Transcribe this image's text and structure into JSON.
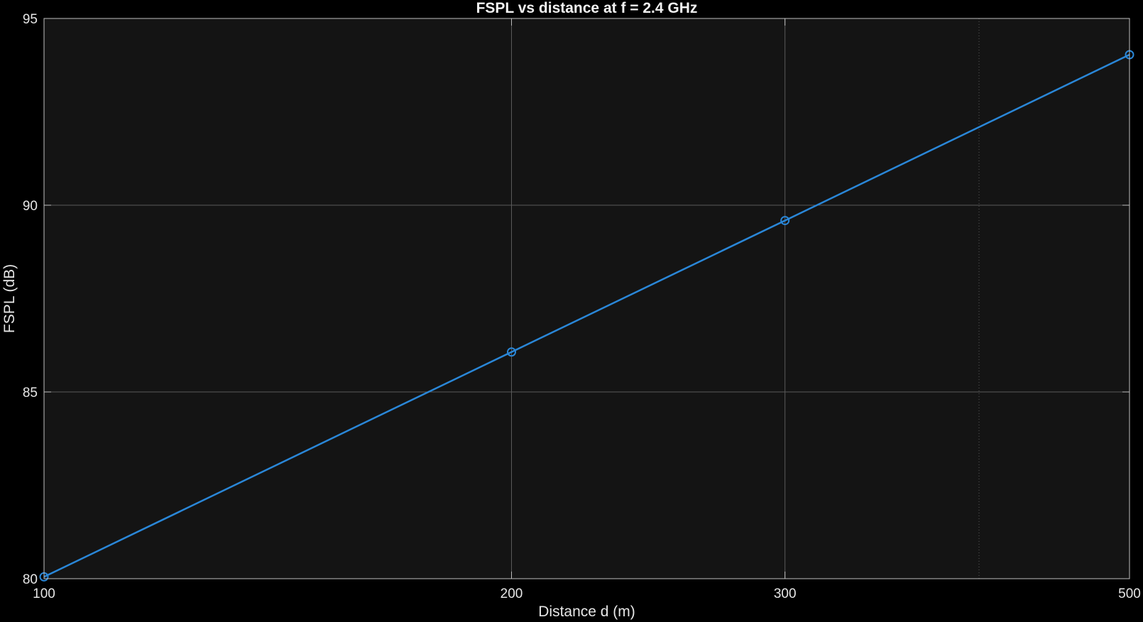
{
  "chart_data": {
    "type": "line",
    "title": "FSPL vs distance at f = 2.4 GHz",
    "xlabel": "Distance d (m)",
    "ylabel": "FSPL (dB)",
    "x_scale": "log",
    "xlim": [
      100,
      500
    ],
    "ylim": [
      80,
      95
    ],
    "x_ticks": [
      100,
      200,
      300,
      500
    ],
    "x_tick_labels": [
      "100",
      "200",
      "300",
      "500"
    ],
    "x_minor_ticks": [
      400
    ],
    "y_ticks": [
      80,
      85,
      90,
      95
    ],
    "y_tick_labels": [
      "80",
      "85",
      "90",
      "95"
    ],
    "grid": true,
    "series": [
      {
        "x": [
          100,
          200,
          300,
          500
        ],
        "y": [
          80.05,
          86.07,
          89.59,
          94.03
        ],
        "marker": "circle",
        "color": "#2a87d8"
      }
    ],
    "colors": {
      "background": "#000000",
      "plot_area": "#141414",
      "grid": "#5a5a5a",
      "axes": "#bfbfbf",
      "text": "#e6e6e6"
    }
  }
}
